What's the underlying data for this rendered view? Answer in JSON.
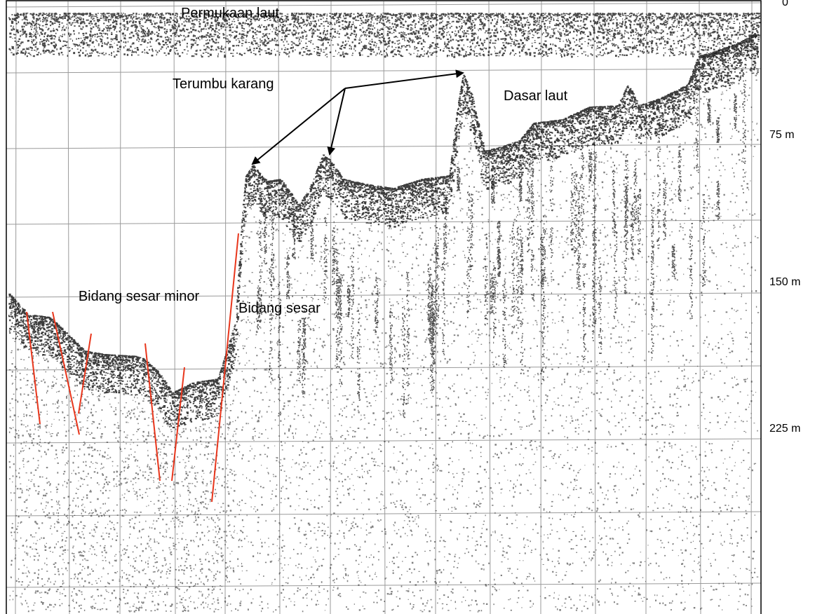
{
  "labels": {
    "sea_surface": "Permukaan laut",
    "coral_reef": "Terumbu karang",
    "seabed": "Dasar laut",
    "fault_plane": "Bidang sesar",
    "minor_fault_plane": "Bidang sesar minor"
  },
  "depth_scale": {
    "top": "0",
    "tick_75": "75 m",
    "tick_150": "150 m",
    "tick_225": "225 m"
  },
  "colors": {
    "fault_lines": "#e8361c",
    "echo_ink": "#1a1a1a",
    "grid": "#9a9a9a",
    "arrow": "#000000"
  }
}
